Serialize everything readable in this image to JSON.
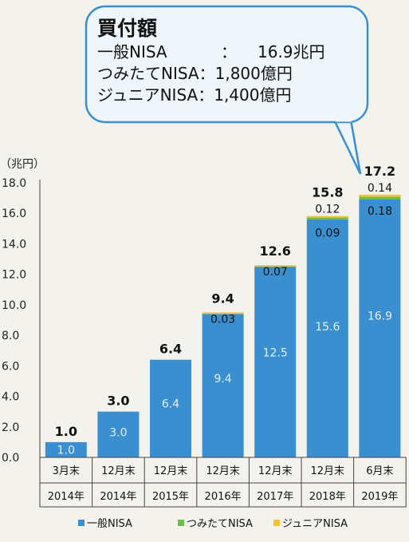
{
  "callout": {
    "title": "買付額",
    "rows": [
      {
        "label": "一般NISA",
        "sep": "：",
        "value": "16.9兆円"
      },
      {
        "label": "つみたてNISA",
        "sep": "：",
        "value": "1,800億円"
      },
      {
        "label": "ジュニアNISA",
        "sep": "：",
        "value": "1,400億円"
      }
    ]
  },
  "chart_data": {
    "type": "bar",
    "stacked": true,
    "ylabel": "（兆円）",
    "ylim": [
      0,
      18
    ],
    "yticks": [
      "0.0",
      "2.0",
      "4.0",
      "6.0",
      "8.0",
      "10.0",
      "12.0",
      "14.0",
      "16.0",
      "18.0"
    ],
    "grid": false,
    "legend_position": "bottom",
    "categories": [
      {
        "top": "3月末",
        "bottom": "2014年"
      },
      {
        "top": "12月末",
        "bottom": "2014年"
      },
      {
        "top": "12月末",
        "bottom": "2015年"
      },
      {
        "top": "12月末",
        "bottom": "2016年"
      },
      {
        "top": "12月末",
        "bottom": "2017年"
      },
      {
        "top": "12月末",
        "bottom": "2018年"
      },
      {
        "top": "6月末",
        "bottom": "2019年"
      }
    ],
    "totals": [
      "1.0",
      "3.0",
      "6.4",
      "9.4",
      "12.6",
      "15.8",
      "17.2"
    ],
    "series": [
      {
        "name": "一般NISA",
        "color": "#3a8fd0",
        "values": [
          1.0,
          3.0,
          6.4,
          9.4,
          12.5,
          15.6,
          16.9
        ],
        "labels": [
          "1.0",
          "3.0",
          "6.4",
          "9.4",
          "12.5",
          "15.6",
          "16.9"
        ]
      },
      {
        "name": "つみたてNISA",
        "color": "#6cbf4a",
        "values": [
          0,
          0,
          0,
          0,
          0,
          0.12,
          0.18
        ],
        "labels": [
          "",
          "",
          "",
          "",
          "",
          "0.12",
          "0.18"
        ]
      },
      {
        "name": "ジュニアNISA",
        "color": "#f1c232",
        "values": [
          0,
          0,
          0,
          0.03,
          0.07,
          0.09,
          0.14
        ],
        "labels": [
          "",
          "",
          "",
          "0.03",
          "0.07",
          "0.09",
          "0.14"
        ]
      }
    ]
  }
}
